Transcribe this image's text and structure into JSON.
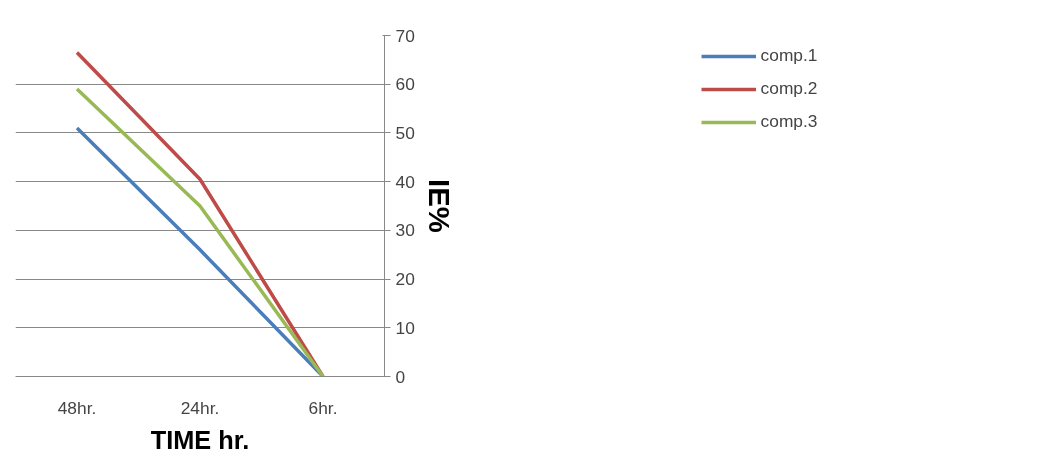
{
  "chart_data": {
    "type": "line",
    "xlabel": "TIME hr.",
    "ylabel": "IE%",
    "categories": [
      "48hr.",
      "24hr.",
      "6hr."
    ],
    "series": [
      {
        "name": "comp.1",
        "color": "#4a7ebb",
        "values": [
          51,
          26,
          0
        ]
      },
      {
        "name": "comp.2",
        "color": "#be4b48",
        "values": [
          66.5,
          40.5,
          0
        ]
      },
      {
        "name": "comp.3",
        "color": "#98b954",
        "values": [
          59,
          35,
          0
        ]
      }
    ],
    "ylim": [
      0,
      70
    ],
    "yticks": [
      0,
      10,
      20,
      30,
      40,
      50,
      60,
      70
    ],
    "grid": "y",
    "legend": "right",
    "marker": "none",
    "line_style": "solid"
  }
}
